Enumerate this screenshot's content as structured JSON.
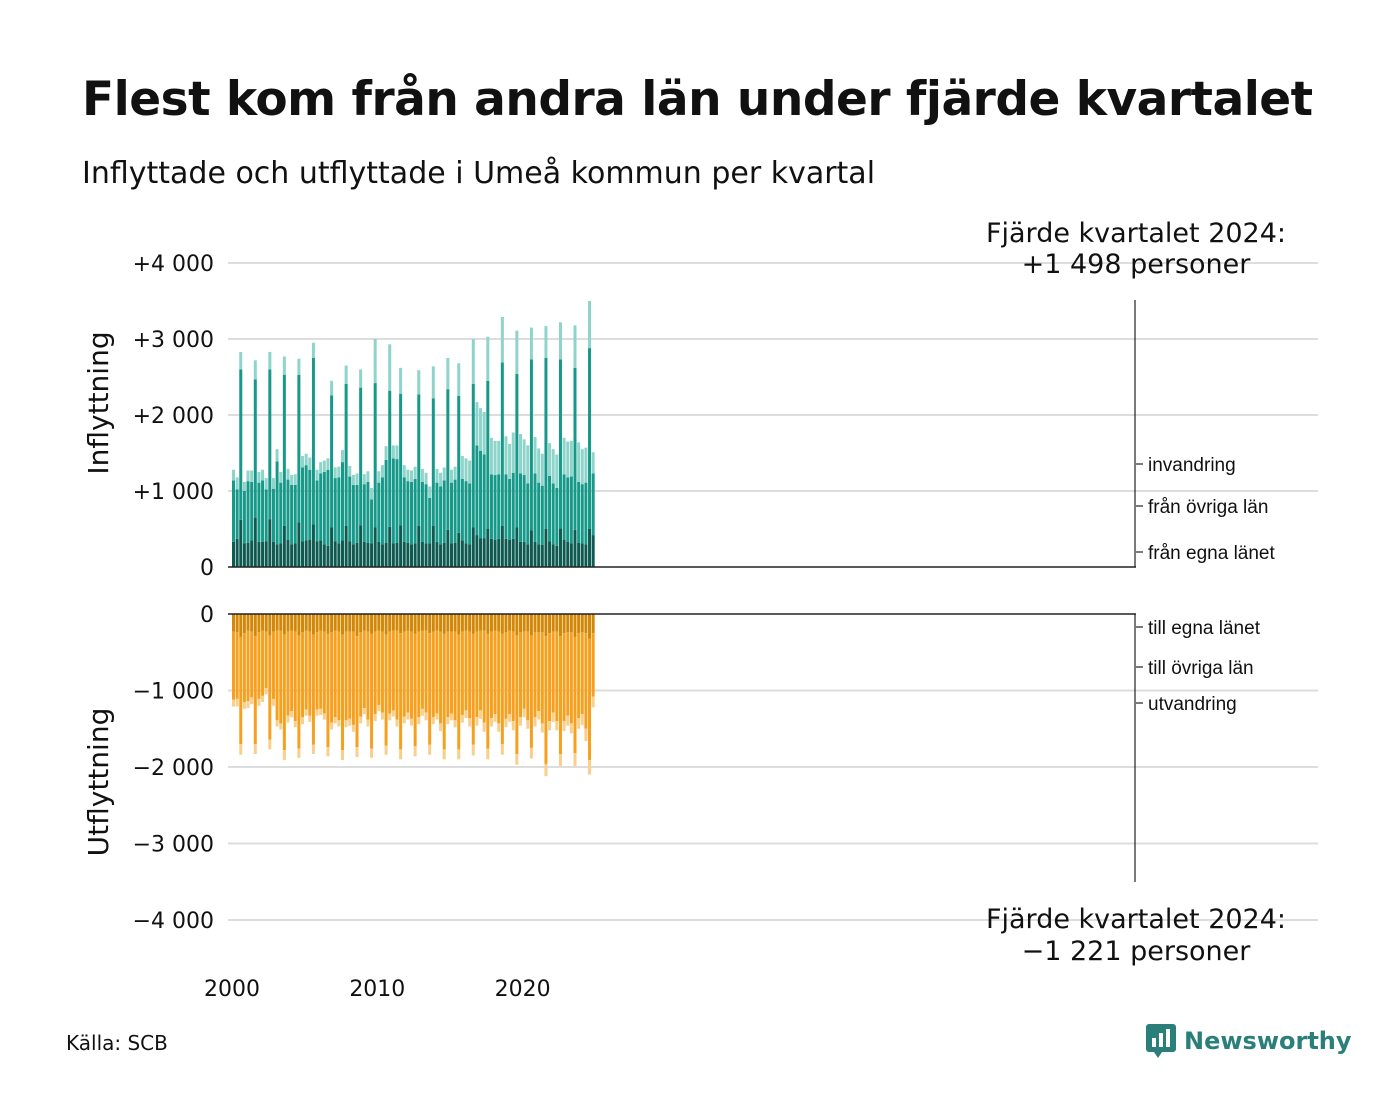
{
  "title": "Flest kom från andra län under fjärde kvartalet",
  "subtitle": "Inflyttade och utflyttade i Umeå kommun per kvartal",
  "source": "Källa: SCB",
  "logo_text": "Newsworthy",
  "colors": {
    "in_own": "#0f5a50",
    "in_other": "#17998a",
    "in_immig": "#8fd4cb",
    "out_own": "#d38707",
    "out_other": "#f7a01e",
    "out_emig": "#f9cf8c",
    "grid": "#dddddd",
    "logo": "#2a7f7a"
  },
  "chart_data": {
    "type": "bar",
    "stacked": true,
    "x_start": "2000 Q1",
    "x_end": "2024 Q4",
    "x_ticks": [
      "2000",
      "2010",
      "2020"
    ],
    "in_panel": {
      "ylabel": "Inflyttning",
      "ylim": [
        0,
        4000
      ],
      "yticks": [
        {
          "value": 0,
          "label": "0"
        },
        {
          "value": 1000,
          "label": "+1 000"
        },
        {
          "value": 2000,
          "label": "+2 000"
        },
        {
          "value": 3000,
          "label": "+3 000"
        },
        {
          "value": 4000,
          "label": "+4 000"
        }
      ],
      "series": [
        {
          "name": "från egna länet",
          "values": [
            330,
            370,
            620,
            310,
            320,
            350,
            650,
            330,
            330,
            340,
            630,
            330,
            300,
            310,
            540,
            360,
            300,
            310,
            590,
            340,
            350,
            360,
            560,
            340,
            350,
            300,
            280,
            520,
            340,
            310,
            350,
            540,
            340,
            300,
            320,
            550,
            330,
            320,
            310,
            520,
            330,
            300,
            320,
            530,
            310,
            320,
            550,
            330,
            320,
            300,
            310,
            540,
            330,
            310,
            310,
            540,
            330,
            300,
            320,
            490,
            310,
            320,
            450,
            350,
            310,
            300,
            520,
            420,
            380,
            380,
            500,
            370,
            360,
            370,
            540,
            370,
            360,
            370,
            520,
            330,
            330,
            300,
            480,
            330,
            300,
            290,
            500,
            340,
            300,
            280,
            510,
            360,
            330,
            310,
            490,
            320,
            310,
            300,
            500,
            420
          ]
        },
        {
          "name": "från övriga län",
          "values": [
            810,
            650,
            1980,
            690,
            810,
            770,
            1820,
            780,
            810,
            680,
            1970,
            700,
            1090,
            800,
            1990,
            790,
            780,
            770,
            1940,
            970,
            990,
            920,
            2190,
            800,
            880,
            950,
            1000,
            1740,
            830,
            870,
            1030,
            1870,
            850,
            780,
            760,
            1810,
            760,
            800,
            580,
            1900,
            780,
            880,
            1090,
            1790,
            1120,
            1100,
            1730,
            850,
            810,
            820,
            850,
            1730,
            790,
            780,
            600,
            1680,
            780,
            760,
            820,
            1850,
            800,
            830,
            1800,
            810,
            820,
            800,
            1890,
            1180,
            1150,
            1100,
            1950,
            850,
            850,
            850,
            2150,
            850,
            800,
            870,
            2020,
            900,
            880,
            800,
            2250,
            900,
            810,
            780,
            2250,
            860,
            800,
            760,
            2220,
            860,
            850,
            880,
            2130,
            800,
            780,
            810,
            2380,
            810
          ]
        },
        {
          "name": "invandring",
          "values": [
            140,
            160,
            230,
            120,
            140,
            150,
            250,
            140,
            140,
            150,
            230,
            140,
            160,
            140,
            240,
            140,
            130,
            140,
            210,
            150,
            150,
            160,
            200,
            140,
            150,
            150,
            150,
            190,
            140,
            140,
            160,
            240,
            140,
            130,
            150,
            240,
            130,
            140,
            150,
            580,
            150,
            160,
            180,
            610,
            170,
            180,
            340,
            160,
            150,
            150,
            160,
            320,
            170,
            150,
            150,
            420,
            180,
            180,
            170,
            410,
            170,
            170,
            430,
            300,
            300,
            300,
            590,
            570,
            560,
            560,
            580,
            480,
            450,
            440,
            600,
            500,
            460,
            530,
            570,
            520,
            470,
            500,
            420,
            480,
            450,
            420,
            420,
            430,
            450,
            440,
            490,
            480,
            470,
            470,
            560,
            520,
            460,
            460,
            620,
            280
          ]
        }
      ]
    },
    "out_panel": {
      "ylabel": "Utflyttning",
      "ylim": [
        -4000,
        0
      ],
      "yticks": [
        {
          "value": 0,
          "label": "0"
        },
        {
          "value": -1000,
          "label": "−1 000"
        },
        {
          "value": -2000,
          "label": "−2 000"
        },
        {
          "value": -3000,
          "label": "−3 000"
        },
        {
          "value": -4000,
          "label": "−4 000"
        }
      ],
      "series": [
        {
          "name": "till egna länet",
          "values": [
            -230,
            -240,
            -300,
            -250,
            -220,
            -230,
            -290,
            -240,
            -220,
            -230,
            -280,
            -230,
            -220,
            -220,
            -270,
            -230,
            -220,
            -230,
            -280,
            -240,
            -220,
            -230,
            -270,
            -240,
            -220,
            -230,
            -260,
            -240,
            -220,
            -230,
            -270,
            -230,
            -230,
            -230,
            -290,
            -240,
            -220,
            -230,
            -260,
            -230,
            -220,
            -230,
            -270,
            -230,
            -220,
            -220,
            -250,
            -230,
            -220,
            -230,
            -260,
            -230,
            -220,
            -220,
            -250,
            -230,
            -220,
            -230,
            -260,
            -230,
            -230,
            -230,
            -270,
            -230,
            -220,
            -230,
            -260,
            -230,
            -220,
            -220,
            -260,
            -230,
            -220,
            -230,
            -260,
            -240,
            -220,
            -230,
            -280,
            -240,
            -230,
            -230,
            -280,
            -240,
            -240,
            -240,
            -290,
            -250,
            -230,
            -230,
            -290,
            -250,
            -240,
            -240,
            -300,
            -250,
            -240,
            -250,
            -320,
            -250
          ]
        },
        {
          "name": "till övriga län",
          "values": [
            -890,
            -870,
            -1400,
            -900,
            -920,
            -860,
            -1410,
            -870,
            -850,
            -740,
            -1360,
            -880,
            -1170,
            -1210,
            -1510,
            -1100,
            -1050,
            -1170,
            -1480,
            -1110,
            -1030,
            -1100,
            -1440,
            -1010,
            -1020,
            -1070,
            -1480,
            -1180,
            -1130,
            -1160,
            -1510,
            -1160,
            -1140,
            -1220,
            -1450,
            -1100,
            -1010,
            -1150,
            -1500,
            -1080,
            -970,
            -1060,
            -1450,
            -1070,
            -1040,
            -1160,
            -1520,
            -1110,
            -1070,
            -1140,
            -1470,
            -1120,
            -1020,
            -1070,
            -1460,
            -1120,
            -1080,
            -1200,
            -1510,
            -1120,
            -1070,
            -1160,
            -1500,
            -1090,
            -1040,
            -1130,
            -1450,
            -1120,
            -1040,
            -1200,
            -1500,
            -1130,
            -1090,
            -1200,
            -1440,
            -1130,
            -1090,
            -1170,
            -1550,
            -1110,
            -1010,
            -1160,
            -1470,
            -1110,
            -1030,
            -1190,
            -1670,
            -1150,
            -1060,
            -1170,
            -1540,
            -1150,
            -1090,
            -1190,
            -1520,
            -1110,
            -1070,
            -1250,
            -1590,
            -830
          ]
        },
        {
          "name": "utvandring",
          "values": [
            -90,
            -100,
            -140,
            -90,
            -90,
            -90,
            -130,
            -90,
            -80,
            -80,
            -130,
            -90,
            -80,
            -80,
            -130,
            -90,
            -80,
            -80,
            -120,
            -90,
            -80,
            -80,
            -120,
            -80,
            -80,
            -80,
            -120,
            -90,
            -80,
            -80,
            -130,
            -90,
            -90,
            -90,
            -130,
            -90,
            -80,
            -90,
            -120,
            -90,
            -80,
            -90,
            -120,
            -90,
            -80,
            -90,
            -130,
            -90,
            -90,
            -90,
            -130,
            -90,
            -90,
            -100,
            -130,
            -90,
            -80,
            -100,
            -130,
            -90,
            -90,
            -90,
            -130,
            -100,
            -100,
            -110,
            -140,
            -110,
            -110,
            -120,
            -140,
            -110,
            -100,
            -110,
            -140,
            -110,
            -100,
            -120,
            -140,
            -110,
            -110,
            -110,
            -140,
            -120,
            -110,
            -120,
            -160,
            -120,
            -120,
            -120,
            -160,
            -130,
            -130,
            -130,
            -170,
            -140,
            -140,
            -160,
            -190,
            -140
          ]
        }
      ]
    },
    "annotations": {
      "in_line1": "Fjärde kvartalet 2024:",
      "in_line2": "+1 498 personer",
      "out_line1": "Fjärde kvartalet 2024:",
      "out_line2": "−1 221 personer"
    }
  }
}
